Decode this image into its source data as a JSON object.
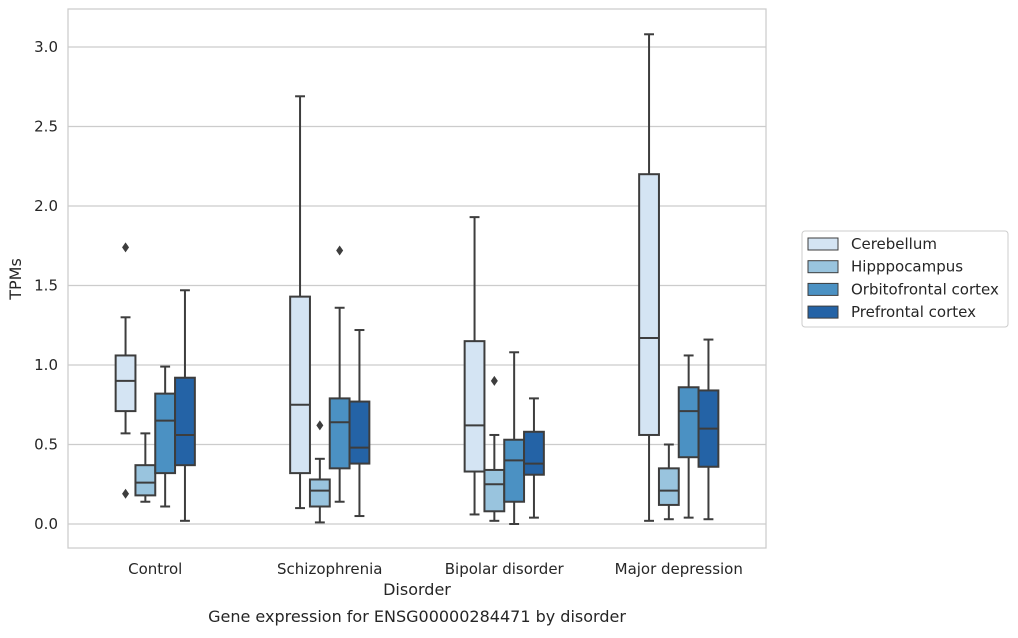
{
  "chart_data": {
    "type": "box",
    "caption": "Gene expression for ENSG00000284471 by disorder",
    "xlabel": "Disorder",
    "ylabel": "TPMs",
    "ylim": [
      -0.15,
      3.25
    ],
    "yticks": [
      "0.0",
      "0.5",
      "1.0",
      "1.5",
      "2.0",
      "2.5",
      "3.0"
    ],
    "ytick_values": [
      0,
      0.5,
      1.0,
      1.5,
      2.0,
      2.5,
      3.0
    ],
    "grid": "horizontal",
    "legend_position": "right",
    "categories": [
      "Control",
      "Schizophrenia",
      "Bipolar disorder",
      "Major depression"
    ],
    "series": [
      {
        "name": "Cerebellum",
        "color": "#d4e4f3",
        "boxes": [
          {
            "whisker_low": 0.57,
            "q1": 0.71,
            "median": 0.9,
            "q3": 1.06,
            "whisker_high": 1.3,
            "outliers": [
              0.19,
              1.74
            ]
          },
          {
            "whisker_low": 0.1,
            "q1": 0.32,
            "median": 0.75,
            "q3": 1.43,
            "whisker_high": 2.69,
            "outliers": []
          },
          {
            "whisker_low": 0.06,
            "q1": 0.33,
            "median": 0.62,
            "q3": 1.15,
            "whisker_high": 1.93,
            "outliers": []
          },
          {
            "whisker_low": 0.02,
            "q1": 0.56,
            "median": 1.17,
            "q3": 2.2,
            "whisker_high": 3.08,
            "outliers": []
          }
        ]
      },
      {
        "name": "Hipppocampus",
        "color": "#99c4de",
        "boxes": [
          {
            "whisker_low": 0.14,
            "q1": 0.18,
            "median": 0.26,
            "q3": 0.37,
            "whisker_high": 0.57,
            "outliers": []
          },
          {
            "whisker_low": 0.01,
            "q1": 0.11,
            "median": 0.21,
            "q3": 0.28,
            "whisker_high": 0.41,
            "outliers": [
              0.62
            ]
          },
          {
            "whisker_low": 0.02,
            "q1": 0.08,
            "median": 0.25,
            "q3": 0.34,
            "whisker_high": 0.56,
            "outliers": [
              0.9
            ]
          },
          {
            "whisker_low": 0.03,
            "q1": 0.12,
            "median": 0.21,
            "q3": 0.35,
            "whisker_high": 0.5,
            "outliers": []
          }
        ]
      },
      {
        "name": "Orbitofrontal cortex",
        "color": "#4b91c3",
        "boxes": [
          {
            "whisker_low": 0.11,
            "q1": 0.32,
            "median": 0.65,
            "q3": 0.82,
            "whisker_high": 0.99,
            "outliers": []
          },
          {
            "whisker_low": 0.14,
            "q1": 0.35,
            "median": 0.64,
            "q3": 0.79,
            "whisker_high": 1.36,
            "outliers": [
              1.72
            ]
          },
          {
            "whisker_low": 0.0,
            "q1": 0.14,
            "median": 0.4,
            "q3": 0.53,
            "whisker_high": 1.08,
            "outliers": []
          },
          {
            "whisker_low": 0.04,
            "q1": 0.42,
            "median": 0.71,
            "q3": 0.86,
            "whisker_high": 1.06,
            "outliers": []
          }
        ]
      },
      {
        "name": "Prefrontal cortex",
        "color": "#2463a6",
        "boxes": [
          {
            "whisker_low": 0.02,
            "q1": 0.37,
            "median": 0.56,
            "q3": 0.92,
            "whisker_high": 1.47,
            "outliers": []
          },
          {
            "whisker_low": 0.05,
            "q1": 0.38,
            "median": 0.48,
            "q3": 0.77,
            "whisker_high": 1.22,
            "outliers": []
          },
          {
            "whisker_low": 0.04,
            "q1": 0.31,
            "median": 0.38,
            "q3": 0.58,
            "whisker_high": 0.79,
            "outliers": []
          },
          {
            "whisker_low": 0.03,
            "q1": 0.36,
            "median": 0.6,
            "q3": 0.84,
            "whisker_high": 1.16,
            "outliers": []
          }
        ]
      }
    ]
  }
}
